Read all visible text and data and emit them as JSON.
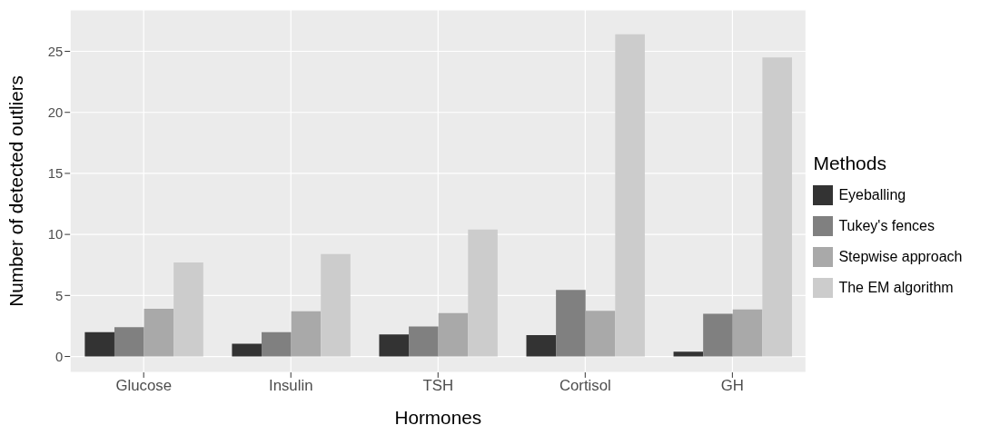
{
  "chart_data": {
    "type": "bar",
    "xlabel": "Hormones",
    "ylabel": "Number of detected outliers",
    "legend_title": "Methods",
    "categories": [
      "Glucose",
      "Insulin",
      "TSH",
      "Cortisol",
      "GH"
    ],
    "series": [
      {
        "name": "Eyeballing",
        "color": "#333333",
        "values": [
          2.0,
          1.05,
          1.8,
          1.75,
          0.4
        ]
      },
      {
        "name": "Tukey's fences",
        "color": "#808080",
        "values": [
          2.4,
          2.0,
          2.45,
          5.45,
          3.5
        ]
      },
      {
        "name": "Stepwise approach",
        "color": "#a9a9a9",
        "values": [
          3.9,
          3.7,
          3.55,
          3.75,
          3.85
        ]
      },
      {
        "name": "The EM algorithm",
        "color": "#cccccc",
        "values": [
          7.7,
          8.4,
          10.4,
          26.4,
          24.5
        ]
      }
    ],
    "ylim": [
      -1.3,
      28.4
    ],
    "yticks": [
      0,
      5,
      10,
      15,
      20,
      25
    ],
    "grid": true,
    "legend": "right"
  }
}
